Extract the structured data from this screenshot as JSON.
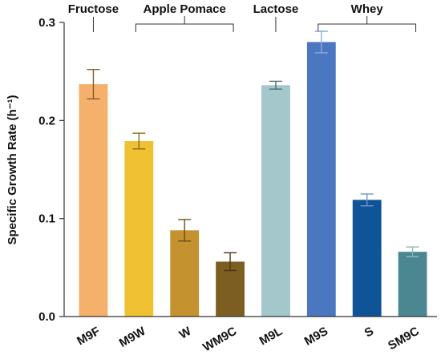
{
  "chart_data": {
    "type": "bar",
    "title": "",
    "xlabel": "",
    "ylabel": "Specific Growth Rate (h⁻¹)",
    "ylim": [
      0,
      0.3
    ],
    "yticks": [
      "0.0",
      "0.1",
      "0.2",
      "0.3"
    ],
    "ytick_values": [
      0,
      0.1,
      0.2,
      0.3
    ],
    "grid": false,
    "legend": "none",
    "categories": [
      "M9F",
      "M9W",
      "W",
      "WM9C",
      "M9L",
      "M9S",
      "S",
      "SM9C"
    ],
    "values": [
      0.237,
      0.179,
      0.088,
      0.056,
      0.236,
      0.28,
      0.119,
      0.066
    ],
    "errors": [
      0.015,
      0.008,
      0.011,
      0.009,
      0.004,
      0.011,
      0.006,
      0.005
    ],
    "colors": [
      "#F5B06B",
      "#F0C233",
      "#C4922F",
      "#7D5E22",
      "#A3C7CA",
      "#4B77C1",
      "#0E5497",
      "#4A8790"
    ],
    "error_colors": [
      "#8A5A2A",
      "#8A6A1A",
      "#6A4E1A",
      "#4A3612",
      "#4F6F72",
      "#8FA8D8",
      "#6F95C8",
      "#8FB5BA"
    ],
    "groups": [
      {
        "label": "Fructose",
        "start": 0,
        "end": 0
      },
      {
        "label": "Apple Pomace",
        "start": 1,
        "end": 3
      },
      {
        "label": "Lactose",
        "start": 4,
        "end": 4
      },
      {
        "label": "Whey",
        "start": 5,
        "end": 7
      }
    ]
  }
}
